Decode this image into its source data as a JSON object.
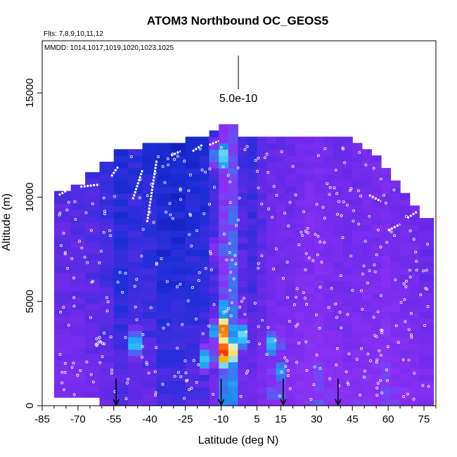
{
  "chart_data": {
    "type": "heatmap",
    "title": "ATOM3 Northbound OC_GEOS5",
    "flights_label": "Flts: 7,8,9,10,11,12",
    "dates_label": "MMDD: 1014,1017,1019,1020,1023,1025",
    "xlabel": "Latitude (deg N)",
    "ylabel": "Altitude (m)",
    "xlim": [
      -85,
      80
    ],
    "ylim": [
      0,
      17500
    ],
    "x_ticks": [
      -85,
      -70,
      -55,
      -40,
      -25,
      -10,
      5,
      15,
      30,
      45,
      60,
      75
    ],
    "y_ticks": [
      0,
      5000,
      10000,
      15000
    ],
    "scale_bar_label": "5.0e-10",
    "scale_bar_value": 5e-10,
    "colormap": [
      "#0a0aa0",
      "#1d2fd8",
      "#6a2ae8",
      "#8c30f5",
      "#1f8ff0",
      "#33c8ff",
      "#f4f4c0",
      "#ffd000",
      "#ff6000",
      "#e00000"
    ],
    "arrow_latitudes": [
      -54,
      -10,
      16,
      39
    ],
    "column_edges": [
      -80,
      -73,
      -67,
      -61,
      -55,
      -49,
      -43,
      -37,
      -31,
      -25,
      -19,
      -15,
      -11,
      -7,
      -3,
      1,
      5,
      9,
      13,
      17,
      21,
      25,
      29,
      33,
      37,
      41,
      45,
      49,
      53,
      57,
      61,
      65,
      69,
      73,
      79
    ],
    "column_tops": [
      10300,
      10600,
      11000,
      11500,
      12100,
      12300,
      12400,
      12500,
      12600,
      12700,
      12800,
      13000,
      13300,
      13300,
      12900,
      12900,
      12900,
      12900,
      12900,
      12900,
      12900,
      12900,
      12900,
      12900,
      12900,
      12800,
      12600,
      12300,
      11800,
      11200,
      10700,
      10200,
      9500,
      9000
    ],
    "column_bottoms": [
      400,
      400,
      400,
      0,
      0,
      0,
      0,
      0,
      0,
      0,
      0,
      0,
      0,
      0,
      0,
      0,
      0,
      0,
      0,
      0,
      0,
      0,
      0,
      0,
      0,
      0,
      0,
      0,
      0,
      0,
      0,
      0,
      0,
      0
    ],
    "column_base": [
      0.22,
      0.22,
      0.2,
      0.18,
      0.14,
      0.16,
      0.15,
      0.12,
      0.12,
      0.14,
      0.14,
      0.18,
      0.36,
      0.4,
      0.2,
      0.18,
      0.22,
      0.26,
      0.27,
      0.26,
      0.28,
      0.3,
      0.3,
      0.28,
      0.27,
      0.26,
      0.27,
      0.28,
      0.28,
      0.3,
      0.28,
      0.26,
      0.26,
      0.24
    ],
    "hotspots": [
      {
        "lat": -8,
        "alt": 2600,
        "value": 1.0
      },
      {
        "lat": -9,
        "alt": 3600,
        "value": 0.9
      },
      {
        "lat": -2,
        "alt": 3400,
        "value": 0.6
      },
      {
        "lat": 12,
        "alt": 3000,
        "value": 0.55
      },
      {
        "lat": -16,
        "alt": 2300,
        "value": 0.55
      },
      {
        "lat": 14,
        "alt": 1600,
        "value": 0.5
      },
      {
        "lat": -45,
        "alt": 3000,
        "value": 0.55
      },
      {
        "lat": -8,
        "alt": 4800,
        "value": 0.5
      },
      {
        "lat": -10,
        "alt": 12000,
        "value": 0.62
      },
      {
        "lat": -10,
        "alt": 7500,
        "value": 0.45
      },
      {
        "lat": 13,
        "alt": 500,
        "value": 0.48
      },
      {
        "lat": 49,
        "alt": 1200,
        "value": 0.35
      },
      {
        "lat": 38,
        "alt": 1600,
        "value": 0.32
      }
    ],
    "flight_tracks": [
      {
        "x": [
          -75,
          -78
        ],
        "y": [
          10300,
          10100
        ]
      },
      {
        "x": [
          -69,
          -61
        ],
        "y": [
          10500,
          10600
        ]
      },
      {
        "x": [
          -56,
          -53
        ],
        "y": [
          11000,
          11500
        ]
      },
      {
        "x": [
          -47,
          -43
        ],
        "y": [
          9900,
          11300
        ]
      },
      {
        "x": [
          -41,
          -37
        ],
        "y": [
          8800,
          11800
        ]
      },
      {
        "x": [
          -31,
          -27
        ],
        "y": [
          12000,
          12200
        ]
      },
      {
        "x": [
          -22,
          -18
        ],
        "y": [
          12200,
          12500
        ]
      },
      {
        "x": [
          -15,
          -11
        ],
        "y": [
          12500,
          12700
        ]
      },
      {
        "x": [
          52,
          57
        ],
        "y": [
          10100,
          9800
        ]
      },
      {
        "x": [
          60,
          65
        ],
        "y": [
          8400,
          8700
        ]
      },
      {
        "x": [
          68,
          72
        ],
        "y": [
          9000,
          9300
        ]
      }
    ]
  }
}
